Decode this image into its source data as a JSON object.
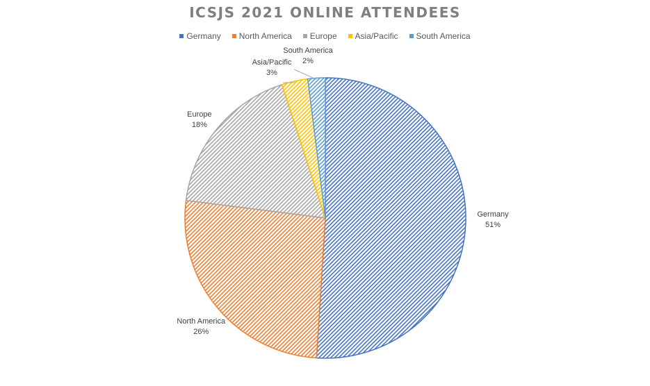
{
  "chart_data": {
    "type": "pie",
    "title": "ICSJS 2021 ONLINE ATTENDEES",
    "legend_position": "top",
    "categories": [
      "Germany",
      "North America",
      "Europe",
      "Asia/Pacific",
      "South America"
    ],
    "values": [
      51,
      26,
      18,
      3,
      2
    ],
    "value_labels": [
      "51%",
      "26%",
      "18%",
      "3%",
      "2%"
    ],
    "colors": [
      "#4472C4",
      "#ED7D31",
      "#A5A5A5",
      "#FFC000",
      "#5B9BD5"
    ],
    "fill_pattern": "diagonal-hatch"
  }
}
